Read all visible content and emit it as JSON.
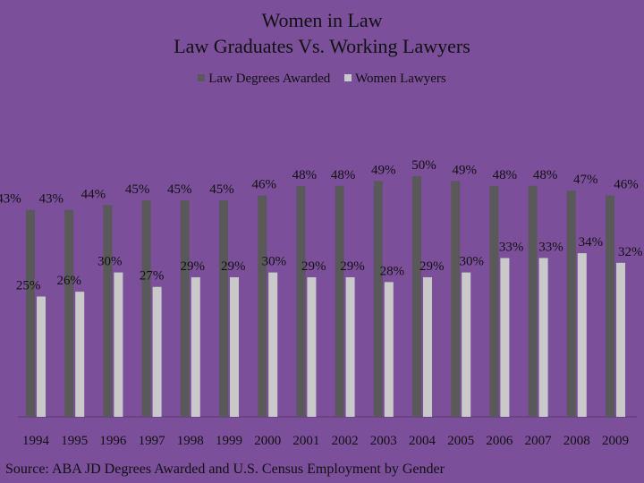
{
  "chart_data": {
    "type": "bar",
    "title": [
      "Women in Law",
      "Law Graduates Vs. Working Lawyers"
    ],
    "categories": [
      "1994",
      "1995",
      "1996",
      "1997",
      "1998",
      "1999",
      "2000",
      "2001",
      "2002",
      "2003",
      "2004",
      "2005",
      "2006",
      "2007",
      "2008",
      "2009"
    ],
    "series": [
      {
        "name": "Law Degrees Awarded",
        "color": "#595959",
        "values": [
          43,
          43,
          44,
          45,
          45,
          45,
          46,
          48,
          48,
          49,
          50,
          49,
          48,
          48,
          47,
          46
        ],
        "labels": [
          "43%",
          "43%",
          "44%",
          "45%",
          "45%",
          "45%",
          "46%",
          "48%",
          "48%",
          "49%",
          "50%",
          "49%",
          "48%",
          "48%",
          "47%",
          "46%"
        ]
      },
      {
        "name": "Women Lawyers",
        "color": "#c9c9c9",
        "values": [
          25,
          26,
          30,
          27,
          29,
          29,
          30,
          29,
          29,
          28,
          29,
          30,
          33,
          33,
          34,
          32
        ],
        "labels": [
          "25%",
          "26%",
          "30%",
          "27%",
          "29%",
          "29%",
          "30%",
          "29%",
          "29%",
          "28%",
          "29%",
          "30%",
          "33%",
          "33%",
          "34%",
          "32%"
        ]
      }
    ],
    "legend_position": "top",
    "grid": false,
    "source": "Source: ABA JD Degrees Awarded and U.S. Census Employment by Gender"
  }
}
